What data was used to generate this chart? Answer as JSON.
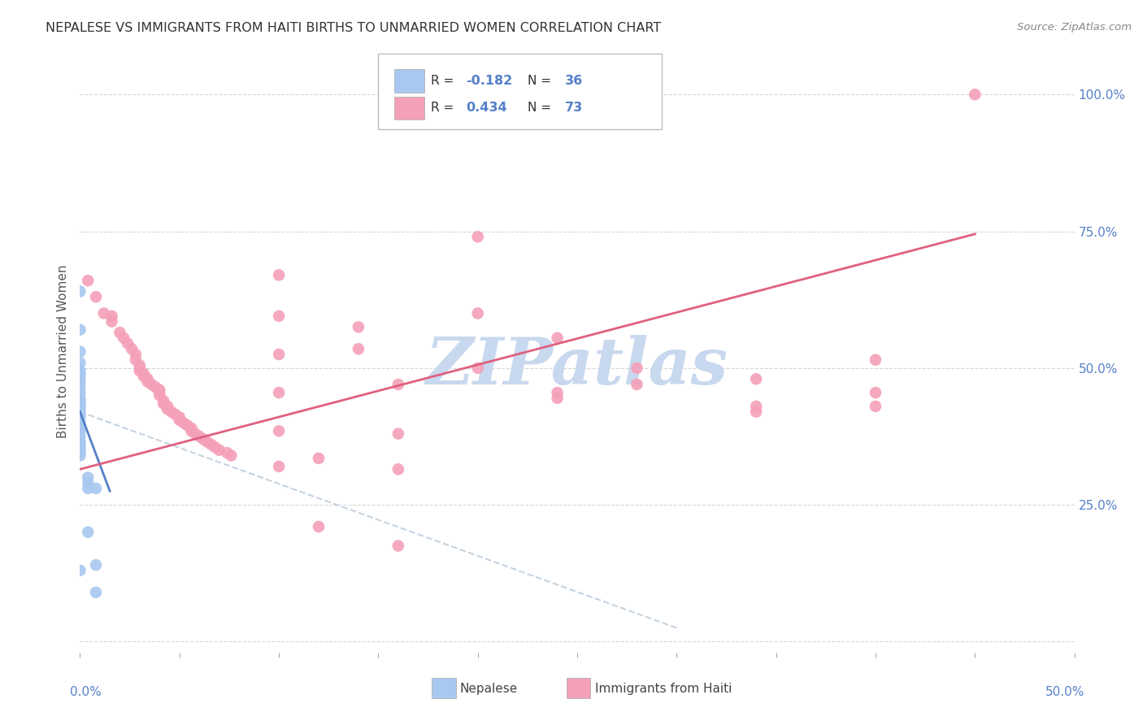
{
  "title": "NEPALESE VS IMMIGRANTS FROM HAITI BIRTHS TO UNMARRIED WOMEN CORRELATION CHART",
  "source": "Source: ZipAtlas.com",
  "ylabel": "Births to Unmarried Women",
  "xlim": [
    0.0,
    0.5
  ],
  "ylim": [
    -0.02,
    1.08
  ],
  "nepalese_color": "#A8C8F0",
  "haiti_color": "#F4A0B8",
  "nepalese_line_color": "#5580C8",
  "haiti_line_color": "#E06080",
  "ref_line_color": "#B8C8D8",
  "watermark_color": "#C8D8EE",
  "watermark_text": "ZIPatlas",
  "legend_label_nepalese": "Nepalese",
  "legend_label_haiti": "Immigrants from Haiti",
  "ytick_color": "#5580C8",
  "xtick_color": "#5580C8",
  "nepalese_points": [
    [
      0.0,
      0.64
    ],
    [
      0.0,
      0.57
    ],
    [
      0.0,
      0.53
    ],
    [
      0.0,
      0.51
    ],
    [
      0.0,
      0.495
    ],
    [
      0.0,
      0.49
    ],
    [
      0.0,
      0.485
    ],
    [
      0.0,
      0.475
    ],
    [
      0.0,
      0.465
    ],
    [
      0.0,
      0.455
    ],
    [
      0.0,
      0.445
    ],
    [
      0.0,
      0.44
    ],
    [
      0.0,
      0.435
    ],
    [
      0.0,
      0.43
    ],
    [
      0.0,
      0.425
    ],
    [
      0.0,
      0.42
    ],
    [
      0.0,
      0.415
    ],
    [
      0.0,
      0.41
    ],
    [
      0.0,
      0.4
    ],
    [
      0.0,
      0.395
    ],
    [
      0.0,
      0.385
    ],
    [
      0.0,
      0.375
    ],
    [
      0.0,
      0.365
    ],
    [
      0.0,
      0.36
    ],
    [
      0.0,
      0.355
    ],
    [
      0.0,
      0.35
    ],
    [
      0.0,
      0.345
    ],
    [
      0.0,
      0.34
    ],
    [
      0.004,
      0.3
    ],
    [
      0.004,
      0.29
    ],
    [
      0.004,
      0.28
    ],
    [
      0.008,
      0.28
    ],
    [
      0.004,
      0.2
    ],
    [
      0.008,
      0.14
    ],
    [
      0.008,
      0.09
    ],
    [
      0.0,
      0.13
    ]
  ],
  "haiti_points": [
    [
      0.004,
      0.66
    ],
    [
      0.008,
      0.63
    ],
    [
      0.012,
      0.6
    ],
    [
      0.016,
      0.595
    ],
    [
      0.016,
      0.585
    ],
    [
      0.02,
      0.565
    ],
    [
      0.022,
      0.555
    ],
    [
      0.024,
      0.545
    ],
    [
      0.026,
      0.535
    ],
    [
      0.028,
      0.525
    ],
    [
      0.028,
      0.515
    ],
    [
      0.03,
      0.505
    ],
    [
      0.03,
      0.5
    ],
    [
      0.03,
      0.495
    ],
    [
      0.032,
      0.49
    ],
    [
      0.032,
      0.485
    ],
    [
      0.034,
      0.48
    ],
    [
      0.034,
      0.475
    ],
    [
      0.036,
      0.47
    ],
    [
      0.038,
      0.465
    ],
    [
      0.04,
      0.46
    ],
    [
      0.04,
      0.455
    ],
    [
      0.04,
      0.45
    ],
    [
      0.042,
      0.44
    ],
    [
      0.042,
      0.435
    ],
    [
      0.044,
      0.43
    ],
    [
      0.044,
      0.425
    ],
    [
      0.046,
      0.42
    ],
    [
      0.048,
      0.415
    ],
    [
      0.05,
      0.41
    ],
    [
      0.05,
      0.405
    ],
    [
      0.052,
      0.4
    ],
    [
      0.054,
      0.395
    ],
    [
      0.056,
      0.39
    ],
    [
      0.056,
      0.385
    ],
    [
      0.058,
      0.38
    ],
    [
      0.06,
      0.375
    ],
    [
      0.062,
      0.37
    ],
    [
      0.064,
      0.365
    ],
    [
      0.066,
      0.36
    ],
    [
      0.068,
      0.355
    ],
    [
      0.07,
      0.35
    ],
    [
      0.074,
      0.345
    ],
    [
      0.076,
      0.34
    ],
    [
      0.1,
      0.67
    ],
    [
      0.1,
      0.595
    ],
    [
      0.1,
      0.525
    ],
    [
      0.1,
      0.455
    ],
    [
      0.1,
      0.385
    ],
    [
      0.1,
      0.32
    ],
    [
      0.12,
      0.335
    ],
    [
      0.12,
      0.21
    ],
    [
      0.14,
      0.575
    ],
    [
      0.14,
      0.535
    ],
    [
      0.16,
      0.47
    ],
    [
      0.16,
      0.38
    ],
    [
      0.16,
      0.315
    ],
    [
      0.16,
      0.175
    ],
    [
      0.2,
      0.74
    ],
    [
      0.2,
      0.6
    ],
    [
      0.2,
      0.5
    ],
    [
      0.24,
      0.555
    ],
    [
      0.24,
      0.455
    ],
    [
      0.24,
      0.445
    ],
    [
      0.28,
      0.5
    ],
    [
      0.28,
      0.47
    ],
    [
      0.34,
      0.48
    ],
    [
      0.34,
      0.43
    ],
    [
      0.34,
      0.42
    ],
    [
      0.4,
      0.515
    ],
    [
      0.4,
      0.455
    ],
    [
      0.4,
      0.43
    ],
    [
      0.45,
      1.0
    ]
  ]
}
